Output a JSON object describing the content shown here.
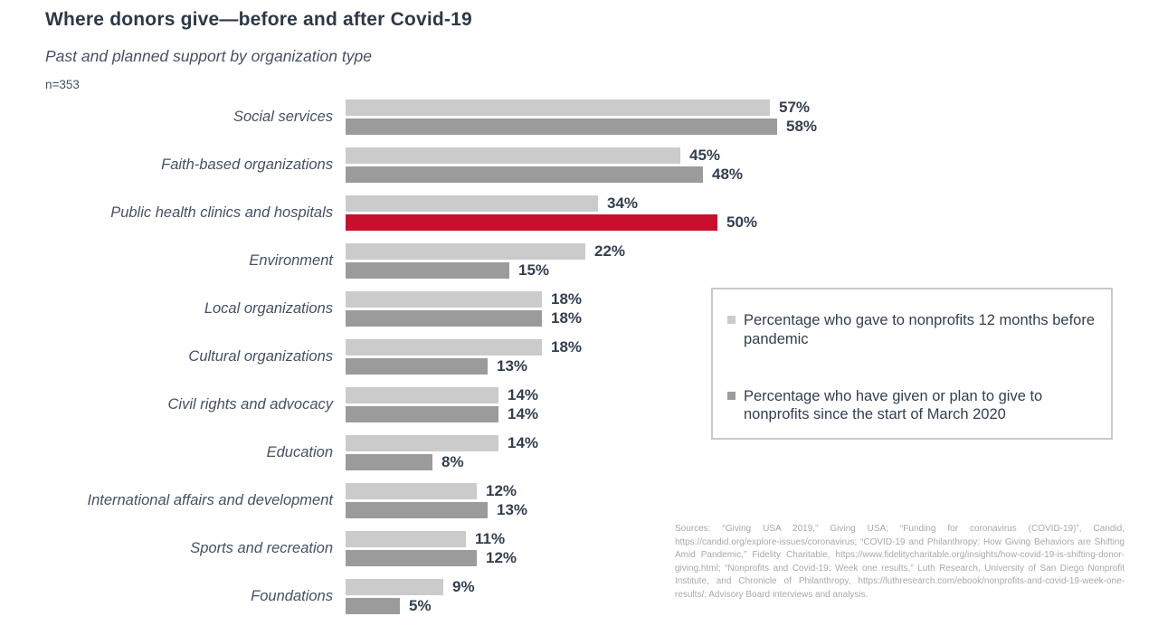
{
  "chart_data": {
    "type": "bar",
    "orientation": "horizontal",
    "title": "Where donors give—before and after Covid-19",
    "subtitle": "Past and planned support by organization type",
    "sample_note": "n=353",
    "value_suffix": "%",
    "xlim": [
      0,
      60
    ],
    "grid": false,
    "axes_shown": false,
    "legend_position": "right",
    "categories": [
      "Social services",
      "Faith-based organizations",
      "Public health clinics and hospitals",
      "Environment",
      "Local organizations",
      "Cultural organizations",
      "Civil rights and advocacy",
      "Education",
      "International affairs and development",
      "Sports and recreation",
      "Foundations"
    ],
    "series": [
      {
        "name": "Percentage who gave to nonprofits 12 months before pandemic",
        "color": "#CBCBCB",
        "values": [
          57,
          45,
          34,
          22,
          18,
          18,
          14,
          14,
          12,
          11,
          9
        ]
      },
      {
        "name": "Percentage who have given or plan to give to nonprofits since the start of March 2020",
        "color": "#9B9B9B",
        "values": [
          58,
          48,
          50,
          15,
          18,
          13,
          14,
          8,
          13,
          12,
          5
        ]
      }
    ],
    "highlight": {
      "category_index": 2,
      "series_index": 1,
      "color": "#C8102E"
    }
  },
  "colors": {
    "accent_red": "#C8102E",
    "bar_light": "#CBCBCB",
    "bar_dark": "#9B9B9B",
    "text_dark": "#333F50",
    "text_muted": "#A9A9A9"
  },
  "sources": {
    "text": "Sources: “Giving USA 2019,” Giving USA; “Funding for coronavirus (COVID-19)”, Candid, https://candid.org/explore-issues/coronavirus; “COVID-19 and Philanthropy: How Giving Behaviors are Shifting Amid Pandemic,” Fidelity Charitable, https://www.fidelitycharitable.org/insights/how-covid-19-is-shifting-donor-giving.html; “Nonprofits and Covid-19: Week one results,” Luth Research, University of San Diego Nonprofit Institute, and Chronicle of Philanthropy, https://luthresearch.com/ebook/nonprofits-and-covid-19-week-one-results/; Advisory Board interviews and analysis."
  }
}
